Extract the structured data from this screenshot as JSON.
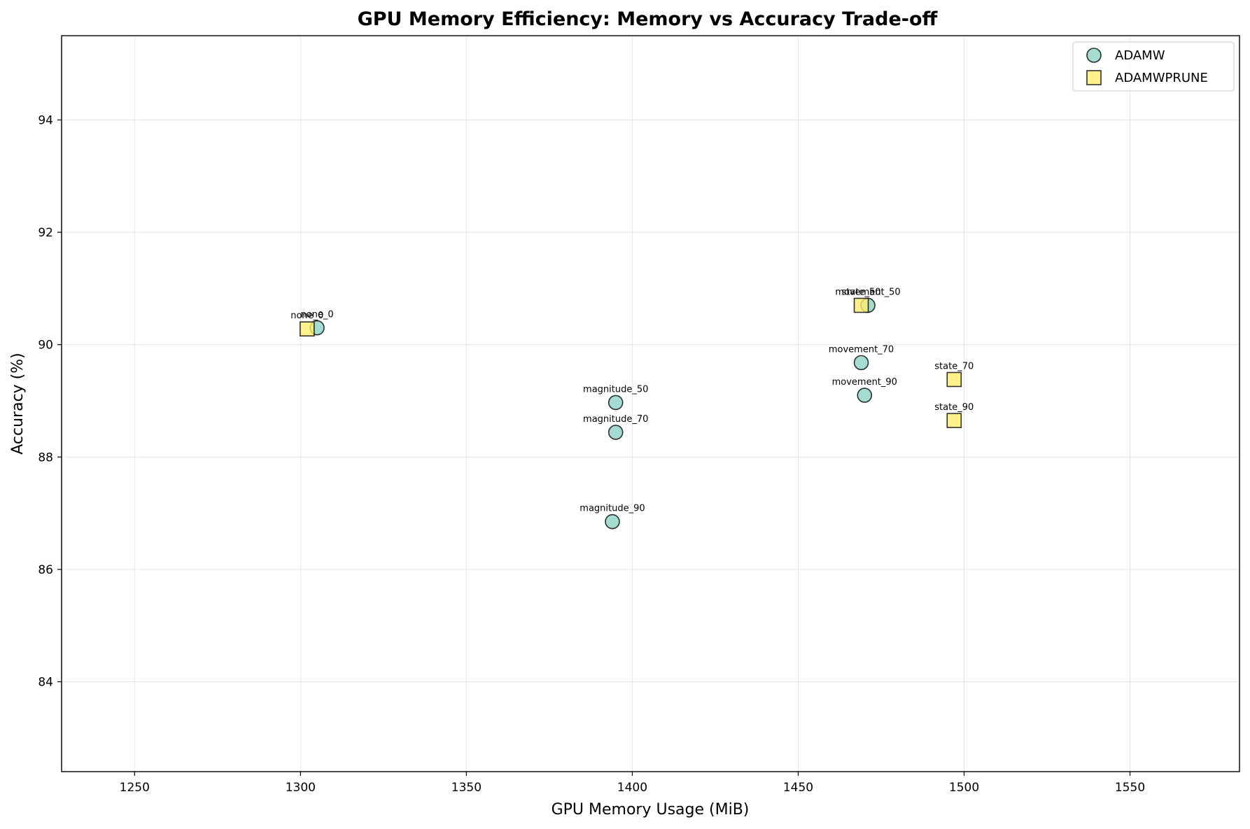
{
  "chart_data": {
    "type": "scatter",
    "title": "GPU Memory Efficiency: Memory vs Accuracy Trade-off",
    "xlabel": "GPU Memory Usage (MiB)",
    "ylabel": "Accuracy (%)",
    "xlim": [
      1228,
      1583
    ],
    "ylim": [
      82.4,
      95.5
    ],
    "xticks": [
      1250,
      1300,
      1350,
      1400,
      1450,
      1500,
      1550
    ],
    "yticks": [
      84,
      86,
      88,
      90,
      92,
      94
    ],
    "grid": true,
    "legend_position": "top-right",
    "series": [
      {
        "name": "ADAMW",
        "marker": "circle",
        "color": "#8dd3c7",
        "points": [
          {
            "label": "none_0",
            "x": 1305,
            "y": 90.3
          },
          {
            "label": "magnitude_50",
            "x": 1395,
            "y": 88.97
          },
          {
            "label": "magnitude_70",
            "x": 1395,
            "y": 88.44
          },
          {
            "label": "magnitude_90",
            "x": 1394,
            "y": 86.85
          },
          {
            "label": "movement_50",
            "x": 1471,
            "y": 90.7
          },
          {
            "label": "movement_70",
            "x": 1469,
            "y": 89.68
          },
          {
            "label": "movement_90",
            "x": 1470,
            "y": 89.1
          }
        ]
      },
      {
        "name": "ADAMWPRUNE",
        "marker": "square",
        "color": "#ffed6f",
        "points": [
          {
            "label": "none_0",
            "x": 1302,
            "y": 90.28
          },
          {
            "label": "state_50",
            "x": 1469,
            "y": 90.7
          },
          {
            "label": "state_70",
            "x": 1497,
            "y": 89.38
          },
          {
            "label": "state_90",
            "x": 1497,
            "y": 88.65
          }
        ]
      }
    ]
  }
}
